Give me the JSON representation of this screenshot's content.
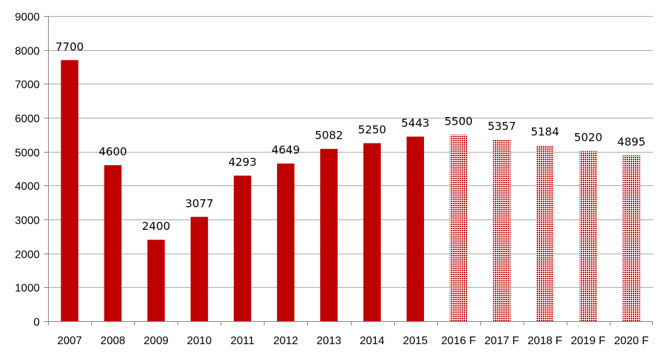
{
  "chart_data": {
    "type": "bar",
    "title": "",
    "xlabel": "",
    "ylabel": "",
    "ylim": [
      0,
      9000
    ],
    "yticks": [
      0,
      1000,
      2000,
      3000,
      4000,
      5000,
      6000,
      7000,
      8000,
      9000
    ],
    "grid": true,
    "categories": [
      "2007",
      "2008",
      "2009",
      "2010",
      "2011",
      "2012",
      "2013",
      "2014",
      "2015",
      "2016 F",
      "2017 F",
      "2018 F",
      "2019 F",
      "2020 F"
    ],
    "values": [
      7700,
      4600,
      2400,
      3077,
      4293,
      4649,
      5082,
      5250,
      5443,
      5500,
      5357,
      5184,
      5020,
      4895
    ],
    "forecast": [
      false,
      false,
      false,
      false,
      false,
      false,
      false,
      false,
      false,
      true,
      true,
      true,
      true,
      true
    ],
    "colors": {
      "actual": "#C00000",
      "forecast": "#C00000",
      "grid": "#A6A6A6",
      "axis": "#808080"
    }
  }
}
